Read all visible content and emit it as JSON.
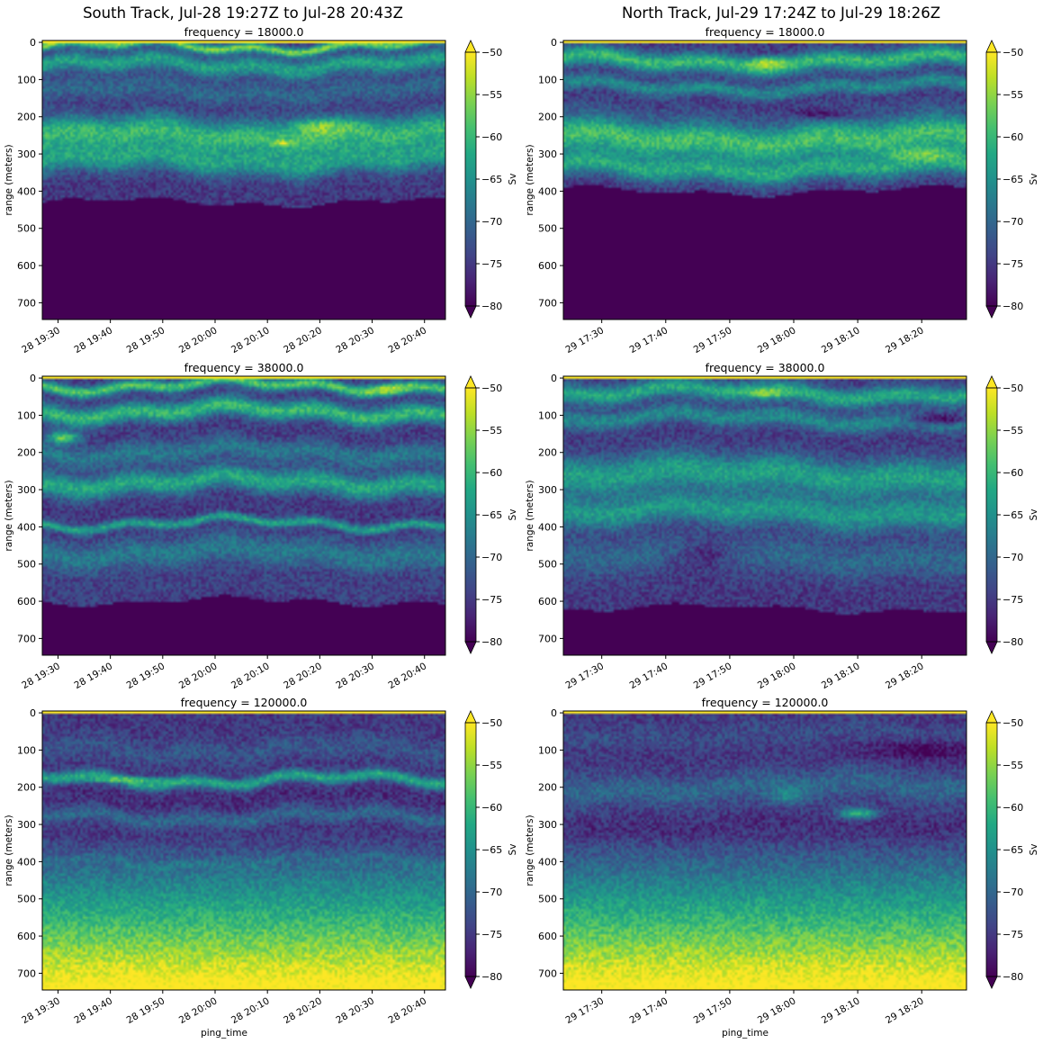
{
  "figure": {
    "columns": [
      {
        "title": "South Track, Jul-28 19:27Z to Jul-28 20:43Z"
      },
      {
        "title": "North Track, Jul-29 17:24Z to Jul-29 18:26Z"
      }
    ]
  },
  "colors": {
    "colormap": "viridis",
    "under": "#440154",
    "over": "#fde725"
  },
  "chart_data": [
    {
      "type": "heatmap",
      "track": "South",
      "row": 0,
      "col": 0,
      "title": "frequency = 18000.0",
      "xlabel": "",
      "ylabel": "range (meters)",
      "xticks": [
        "28 19:30",
        "28 19:40",
        "28 19:50",
        "28 20:00",
        "28 20:10",
        "28 20:20",
        "28 20:30",
        "28 20:40"
      ],
      "xtick_minutes": [
        30,
        40,
        50,
        60,
        70,
        80,
        90,
        100
      ],
      "xlim_minutes": [
        27,
        104
      ],
      "yticks": [
        0,
        100,
        200,
        300,
        400,
        500,
        600,
        700
      ],
      "ylim": [
        745,
        -5
      ],
      "colorbar": {
        "label": "Sv",
        "ticks": [
          -50,
          -55,
          -60,
          -65,
          -70,
          -75,
          -80
        ],
        "vmin": -80,
        "vmax": -50,
        "extend": "both"
      },
      "bottom_depth_m": 430,
      "decay_below": false,
      "layers": [
        {
          "depth": 10,
          "sv": -56,
          "width": 12
        },
        {
          "depth": 60,
          "sv": -63,
          "width": 25
        },
        {
          "depth": 130,
          "sv": -70,
          "width": 30
        },
        {
          "depth": 250,
          "sv": -60,
          "width": 45
        },
        {
          "depth": 320,
          "sv": -64,
          "width": 35
        }
      ],
      "hotspots": [
        {
          "t": 80,
          "depth": 230,
          "sv": -55,
          "w": 6,
          "h": 50
        },
        {
          "t": 73,
          "depth": 270,
          "sv": -52,
          "w": 2,
          "h": 15
        }
      ]
    },
    {
      "type": "heatmap",
      "track": "North",
      "row": 0,
      "col": 1,
      "title": "frequency = 18000.0",
      "xlabel": "",
      "ylabel": "range (meters)",
      "xticks": [
        "29 17:30",
        "29 17:40",
        "29 17:50",
        "29 18:00",
        "29 18:10",
        "29 18:20"
      ],
      "xtick_minutes": [
        30,
        40,
        50,
        60,
        70,
        80
      ],
      "xlim_minutes": [
        24,
        87
      ],
      "yticks": [
        0,
        100,
        200,
        300,
        400,
        500,
        600,
        700
      ],
      "ylim": [
        745,
        -5
      ],
      "colorbar": {
        "label": "Sv",
        "ticks": [
          -50,
          -55,
          -60,
          -65,
          -70,
          -75,
          -80
        ],
        "vmin": -80,
        "vmax": -50,
        "extend": "both"
      },
      "bottom_depth_m": 400,
      "decay_below": false,
      "layers": [
        {
          "depth": 50,
          "sv": -60,
          "width": 25
        },
        {
          "depth": 120,
          "sv": -66,
          "width": 20
        },
        {
          "depth": 180,
          "sv": -74,
          "width": 18
        },
        {
          "depth": 260,
          "sv": -59,
          "width": 50
        },
        {
          "depth": 340,
          "sv": -63,
          "width": 30
        }
      ],
      "hotspots": [
        {
          "t": 56,
          "depth": 55,
          "sv": -53,
          "w": 3,
          "h": 30
        },
        {
          "t": 80,
          "depth": 300,
          "sv": -56,
          "w": 6,
          "h": 40
        },
        {
          "t": 64,
          "depth": 190,
          "sv": -78,
          "w": 5,
          "h": 30
        }
      ]
    },
    {
      "type": "heatmap",
      "track": "South",
      "row": 1,
      "col": 0,
      "title": "frequency = 38000.0",
      "xlabel": "",
      "ylabel": "range (meters)",
      "xticks": [
        "28 19:30",
        "28 19:40",
        "28 19:50",
        "28 20:00",
        "28 20:10",
        "28 20:20",
        "28 20:30",
        "28 20:40"
      ],
      "xtick_minutes": [
        30,
        40,
        50,
        60,
        70,
        80,
        90,
        100
      ],
      "xlim_minutes": [
        27,
        104
      ],
      "yticks": [
        0,
        100,
        200,
        300,
        400,
        500,
        600,
        700
      ],
      "ylim": [
        745,
        -5
      ],
      "colorbar": {
        "label": "Sv",
        "ticks": [
          -50,
          -55,
          -60,
          -65,
          -70,
          -75,
          -80
        ],
        "vmin": -80,
        "vmax": -50,
        "extend": "both"
      },
      "bottom_depth_m": 600,
      "decay_below": false,
      "layers": [
        {
          "depth": 20,
          "sv": -58,
          "width": 15
        },
        {
          "depth": 90,
          "sv": -60,
          "width": 25
        },
        {
          "depth": 200,
          "sv": -68,
          "width": 30
        },
        {
          "depth": 280,
          "sv": -62,
          "width": 30
        },
        {
          "depth": 390,
          "sv": -63,
          "width": 12
        },
        {
          "depth": 470,
          "sv": -68,
          "width": 40
        },
        {
          "depth": 560,
          "sv": -74,
          "width": 25
        }
      ],
      "hotspots": [
        {
          "t": 93,
          "depth": 30,
          "sv": -53,
          "w": 4,
          "h": 25
        },
        {
          "t": 31,
          "depth": 160,
          "sv": -57,
          "w": 3,
          "h": 35
        }
      ]
    },
    {
      "type": "heatmap",
      "track": "North",
      "row": 1,
      "col": 1,
      "title": "frequency = 38000.0",
      "xlabel": "",
      "ylabel": "range (meters)",
      "xticks": [
        "29 17:30",
        "29 17:40",
        "29 17:50",
        "29 18:00",
        "29 18:10",
        "29 18:20"
      ],
      "xtick_minutes": [
        30,
        40,
        50,
        60,
        70,
        80
      ],
      "xlim_minutes": [
        24,
        87
      ],
      "yticks": [
        0,
        100,
        200,
        300,
        400,
        500,
        600,
        700
      ],
      "ylim": [
        745,
        -5
      ],
      "colorbar": {
        "label": "Sv",
        "ticks": [
          -50,
          -55,
          -60,
          -65,
          -70,
          -75,
          -80
        ],
        "vmin": -80,
        "vmax": -50,
        "extend": "both"
      },
      "bottom_depth_m": 620,
      "decay_below": false,
      "layers": [
        {
          "depth": 40,
          "sv": -62,
          "width": 25
        },
        {
          "depth": 110,
          "sv": -66,
          "width": 25
        },
        {
          "depth": 260,
          "sv": -63,
          "width": 50
        },
        {
          "depth": 360,
          "sv": -64,
          "width": 40
        },
        {
          "depth": 480,
          "sv": -70,
          "width": 50
        },
        {
          "depth": 570,
          "sv": -75,
          "width": 30
        }
      ],
      "hotspots": [
        {
          "t": 56,
          "depth": 40,
          "sv": -54,
          "w": 3,
          "h": 25
        },
        {
          "t": 83,
          "depth": 110,
          "sv": -79,
          "w": 5,
          "h": 30
        },
        {
          "t": 46,
          "depth": 480,
          "sv": -76,
          "w": 5,
          "h": 100
        }
      ]
    },
    {
      "type": "heatmap",
      "track": "South",
      "row": 2,
      "col": 0,
      "title": "frequency = 120000.0",
      "xlabel": "ping_time",
      "ylabel": "range (meters)",
      "xticks": [
        "28 19:30",
        "28 19:40",
        "28 19:50",
        "28 20:00",
        "28 20:10",
        "28 20:20",
        "28 20:30",
        "28 20:40"
      ],
      "xtick_minutes": [
        30,
        40,
        50,
        60,
        70,
        80,
        90,
        100
      ],
      "xlim_minutes": [
        27,
        104
      ],
      "yticks": [
        0,
        100,
        200,
        300,
        400,
        500,
        600,
        700
      ],
      "ylim": [
        745,
        -5
      ],
      "colorbar": {
        "label": "Sv",
        "ticks": [
          -50,
          -55,
          -60,
          -65,
          -70,
          -75,
          -80
        ],
        "vmin": -80,
        "vmax": -50,
        "extend": "both"
      },
      "bottom_depth_m": null,
      "decay_below": true,
      "layers": [
        {
          "depth": 100,
          "sv": -72,
          "width": 30
        },
        {
          "depth": 180,
          "sv": -62,
          "width": 15
        },
        {
          "depth": 230,
          "sv": -76,
          "width": 25
        },
        {
          "depth": 280,
          "sv": -70,
          "width": 20
        },
        {
          "depth": 400,
          "sv": -73,
          "width": 10
        }
      ],
      "hotspots": [
        {
          "t": 43,
          "depth": 180,
          "sv": -56,
          "w": 8,
          "h": 12
        }
      ]
    },
    {
      "type": "heatmap",
      "track": "North",
      "row": 2,
      "col": 1,
      "title": "frequency = 120000.0",
      "xlabel": "ping_time",
      "ylabel": "range (meters)",
      "xticks": [
        "29 17:30",
        "29 17:40",
        "29 17:50",
        "29 18:00",
        "29 18:10",
        "29 18:20"
      ],
      "xtick_minutes": [
        30,
        40,
        50,
        60,
        70,
        80
      ],
      "xlim_minutes": [
        24,
        87
      ],
      "yticks": [
        0,
        100,
        200,
        300,
        400,
        500,
        600,
        700
      ],
      "ylim": [
        745,
        -5
      ],
      "colorbar": {
        "label": "Sv",
        "ticks": [
          -50,
          -55,
          -60,
          -65,
          -70,
          -75,
          -80
        ],
        "vmin": -80,
        "vmax": -50,
        "extend": "both"
      },
      "bottom_depth_m": null,
      "decay_below": true,
      "layers": [
        {
          "depth": 60,
          "sv": -73,
          "width": 30
        },
        {
          "depth": 200,
          "sv": -70,
          "width": 40
        },
        {
          "depth": 300,
          "sv": -76,
          "width": 25
        }
      ],
      "hotspots": [
        {
          "t": 80,
          "depth": 100,
          "sv": -80,
          "w": 8,
          "h": 50
        },
        {
          "t": 70,
          "depth": 270,
          "sv": -60,
          "w": 3,
          "h": 30
        },
        {
          "t": 59,
          "depth": 220,
          "sv": -66,
          "w": 3,
          "h": 50
        }
      ]
    }
  ]
}
